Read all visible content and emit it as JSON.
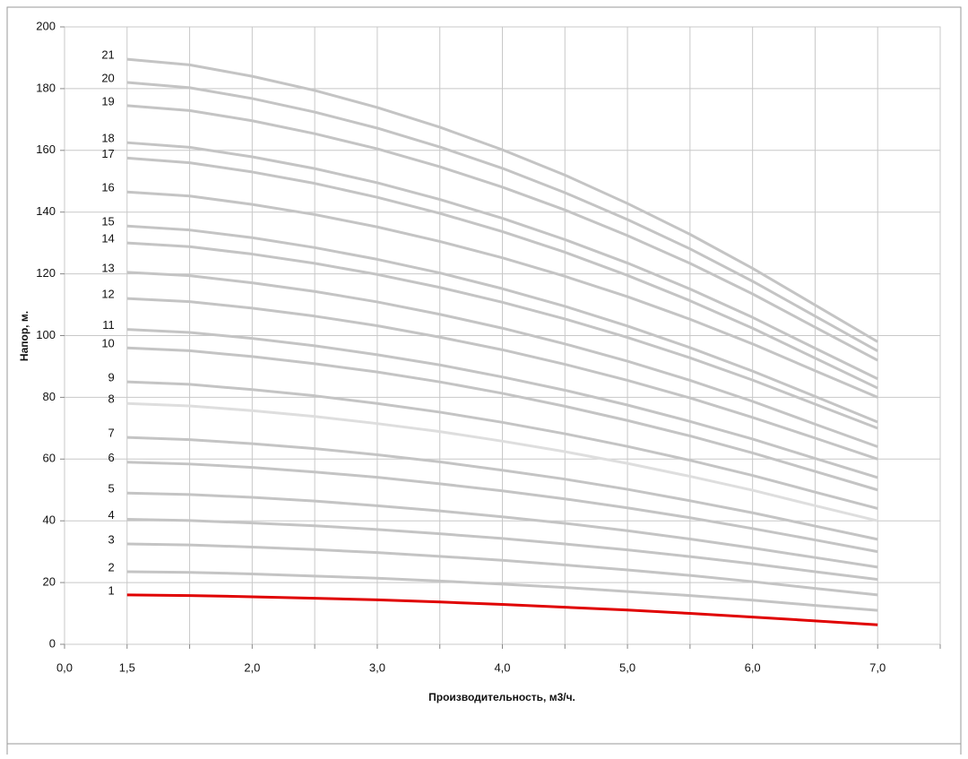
{
  "chart_data": {
    "type": "line",
    "x_label": "Производительность, м3/ч.",
    "y_label": "Напор, м.",
    "categories": [
      "0,0",
      "1,5",
      null,
      "2,0",
      null,
      "3,0",
      null,
      "4,0",
      null,
      "5,0",
      null,
      "6,0",
      null,
      "7,0",
      null
    ],
    "ylim": [
      0,
      200
    ],
    "yticks": [
      0,
      20,
      40,
      60,
      80,
      100,
      120,
      140,
      160,
      180,
      200
    ],
    "grid": true,
    "series": [
      {
        "name": "1",
        "color": "#e00000",
        "values": [
          null,
          16,
          15.8,
          15.4,
          14.9,
          14.4,
          13.7,
          12.9,
          12.0,
          11.1,
          10.0,
          8.8,
          7.6,
          6.3,
          null
        ]
      },
      {
        "name": "2",
        "color": "#c4c4c4",
        "values": [
          null,
          23.5,
          23.3,
          22.8,
          22.1,
          21.4,
          20.5,
          19.5,
          18.4,
          17.1,
          15.8,
          14.3,
          12.6,
          11,
          null
        ]
      },
      {
        "name": "3",
        "color": "#c4c4c4",
        "values": [
          null,
          32.5,
          32.2,
          31.5,
          30.7,
          29.7,
          28.5,
          27.2,
          25.7,
          24.1,
          22.3,
          20.3,
          18.1,
          16,
          null
        ]
      },
      {
        "name": "4",
        "color": "#c4c4c4",
        "values": [
          null,
          40.5,
          40.1,
          39.3,
          38.4,
          37.2,
          35.8,
          34.3,
          32.5,
          30.6,
          28.4,
          26.1,
          23.5,
          21,
          null
        ]
      },
      {
        "name": "5",
        "color": "#c4c4c4",
        "values": [
          null,
          49,
          48.5,
          47.6,
          46.4,
          44.9,
          43.2,
          41.3,
          39.2,
          36.8,
          34.1,
          31.2,
          28.1,
          25,
          null
        ]
      },
      {
        "name": "6",
        "color": "#c4c4c4",
        "values": [
          null,
          59,
          58.4,
          57.3,
          55.8,
          54.1,
          52,
          49.7,
          47.1,
          44.2,
          41,
          37.5,
          33.8,
          30,
          null
        ]
      },
      {
        "name": "7",
        "color": "#c4c4c4",
        "values": [
          null,
          67,
          66.3,
          65,
          63.4,
          61.4,
          59.1,
          56.4,
          53.5,
          50.2,
          46.5,
          42.6,
          38.3,
          34,
          null
        ]
      },
      {
        "name": "8",
        "color": "#dedede",
        "values": [
          null,
          78,
          77.2,
          75.7,
          73.8,
          71.5,
          68.9,
          65.8,
          62.4,
          58.6,
          54.4,
          49.9,
          44.9,
          40,
          null
        ]
      },
      {
        "name": "9",
        "color": "#c4c4c4",
        "values": [
          null,
          85,
          84.2,
          82.5,
          80.5,
          78,
          75.2,
          71.9,
          68.2,
          64.1,
          59.6,
          54.7,
          49.3,
          44,
          null
        ]
      },
      {
        "name": "10",
        "color": "#c4c4c4",
        "values": [
          null,
          96,
          95.1,
          93.2,
          90.9,
          88.2,
          85,
          81.3,
          77.1,
          72.5,
          67.5,
          62,
          56,
          50,
          null
        ]
      },
      {
        "name": "11",
        "color": "#c4c4c4",
        "values": [
          null,
          102,
          101,
          99.1,
          96.7,
          93.8,
          90.5,
          86.6,
          82.3,
          77.5,
          72.2,
          66.5,
          60.2,
          54,
          null
        ]
      },
      {
        "name": "12",
        "color": "#c4c4c4",
        "values": [
          null,
          112,
          111,
          108.9,
          106.3,
          103.2,
          99.5,
          95.4,
          90.7,
          85.5,
          79.8,
          73.5,
          66.8,
          60,
          null
        ]
      },
      {
        "name": "13",
        "color": "#c4c4c4",
        "values": [
          null,
          120.5,
          119.4,
          117.1,
          114.3,
          110.9,
          106.9,
          102.4,
          97.3,
          91.7,
          85.5,
          78.7,
          71.3,
          64,
          null
        ]
      },
      {
        "name": "14",
        "color": "#c4c4c4",
        "values": [
          null,
          130,
          128.8,
          126.4,
          123.4,
          119.8,
          115.6,
          110.8,
          105.4,
          99.4,
          92.8,
          85.6,
          77.8,
          70,
          null
        ]
      },
      {
        "name": "15",
        "color": "#c4c4c4",
        "values": [
          null,
          135.5,
          134.2,
          131.7,
          128.5,
          124.7,
          120.3,
          115.2,
          109.5,
          103.1,
          96.1,
          88.5,
          80.3,
          72,
          null
        ]
      },
      {
        "name": "16",
        "color": "#c4c4c4",
        "values": [
          null,
          146.5,
          145.2,
          142.5,
          139.2,
          135.2,
          130.5,
          125.2,
          119.2,
          112.6,
          105.3,
          97.3,
          88.6,
          80,
          null
        ]
      },
      {
        "name": "17",
        "color": "#c4c4c4",
        "values": [
          null,
          157.5,
          156,
          153,
          149.3,
          144.8,
          139.6,
          133.7,
          127,
          119.5,
          111.3,
          102.4,
          92.7,
          83,
          null
        ]
      },
      {
        "name": "18",
        "color": "#c4c4c4",
        "values": [
          null,
          162.5,
          161,
          157.9,
          154.1,
          149.5,
          144.1,
          138,
          131.1,
          123.5,
          115.1,
          105.9,
          95.9,
          86,
          null
        ]
      },
      {
        "name": "19",
        "color": "#c4c4c4",
        "values": [
          null,
          174.5,
          172.9,
          169.6,
          165.4,
          160.5,
          154.7,
          148.1,
          140.7,
          132.4,
          123.4,
          113.5,
          102.7,
          92,
          null
        ]
      },
      {
        "name": "20",
        "color": "#c4c4c4",
        "values": [
          null,
          182,
          180.3,
          176.8,
          172.4,
          167.2,
          161.1,
          154.2,
          146.3,
          137.6,
          128.1,
          117.6,
          106.3,
          95,
          null
        ]
      },
      {
        "name": "21",
        "color": "#c4c4c4",
        "values": [
          null,
          189.5,
          187.7,
          184,
          179.4,
          173.9,
          167.5,
          160.2,
          152,
          142.8,
          132.8,
          121.8,
          109.9,
          98,
          null
        ]
      }
    ]
  }
}
